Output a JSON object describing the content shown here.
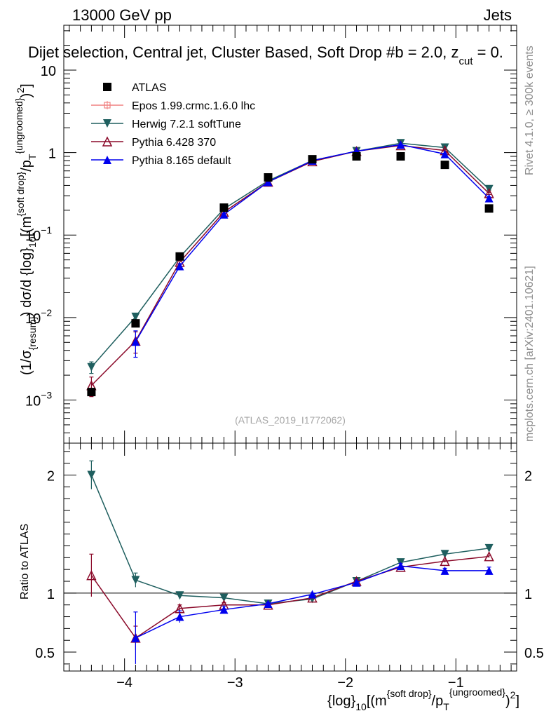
{
  "header": {
    "energy_label": "13000 GeV pp",
    "category_label": "Jets",
    "title": "Dijet selection, Central jet, Cluster Based, Soft Drop #b = 2.0, z_cut = 0.",
    "title_main": "Dijet selection, Central jet, Cluster Based, Soft Drop #",
    "title_beta": "b = 2.0, z",
    "title_cut": "cut",
    "title_end": " = 0."
  },
  "side_labels": {
    "rivet": "Rivet 4.1.0, ≥ 300k events",
    "mcplots": "mcplots.cern.ch [arXiv:2401.10621]"
  },
  "watermark": "(ATLAS_2019_I1772062)",
  "colors": {
    "atlas": "#000000",
    "epos": "#f08080",
    "herwig": "#1f5f5f",
    "pythia6": "#8b0a2a",
    "pythia8": "#0000ee"
  },
  "chart_data": [
    {
      "type": "scatter",
      "panel": "main",
      "yscale": "log",
      "ylabel": "(1/σ_{resum}) dσ/d {log}_10[(m^{soft drop}/p_T^{ungroomed})^2]",
      "ylabel_parts": {
        "a": "(1/σ",
        "a_sub": "{resum}",
        "b": ") dσ/d {log}",
        "b_sub": "10",
        "c": "[(m",
        "c_sup": "{soft drop}",
        "d": "/p",
        "d_sub": "T",
        "d_sup": "{ungroomed}",
        "e": ")",
        "e_sup": "2",
        "f": "]"
      },
      "xlim": [
        -4.55,
        -0.45
      ],
      "ylim": [
        0.0003,
        35
      ],
      "yticks": [
        {
          "value": 0.001,
          "base": "10",
          "exp": "−3"
        },
        {
          "value": 0.01,
          "base": "10",
          "exp": "−2"
        },
        {
          "value": 0.1,
          "base": "10",
          "exp": "−1"
        },
        {
          "value": 1,
          "base": "1",
          "exp": ""
        },
        {
          "value": 10,
          "base": "10",
          "exp": ""
        }
      ],
      "x": [
        -4.3,
        -3.9,
        -3.5,
        -3.1,
        -2.7,
        -2.3,
        -1.9,
        -1.5,
        -1.1,
        -0.7
      ],
      "legend_position": "top-left",
      "series": [
        {
          "name": "ATLAS",
          "key": "atlas",
          "marker": "square",
          "values": [
            0.00125,
            0.0085,
            0.055,
            0.215,
            0.5,
            0.83,
            0.9,
            0.9,
            0.71,
            0.21
          ],
          "errors": [
            0.0001,
            0.0006,
            0.003,
            0.008,
            0.015,
            0.02,
            0.02,
            0.02,
            0.02,
            0.01
          ]
        },
        {
          "name": "Epos 1.99.crmc.1.6.0 lhc",
          "key": "epos",
          "marker": "open-cross",
          "values": []
        },
        {
          "name": "Herwig 7.2.1 softTune",
          "key": "herwig",
          "marker": "triangle-down",
          "values": [
            0.0025,
            0.0102,
            0.054,
            0.208,
            0.455,
            0.8,
            1.04,
            1.3,
            1.15,
            0.36
          ],
          "errors": [
            0.0004,
            0.0009,
            0.002,
            0.005,
            0.008,
            0.012,
            0.015,
            0.02,
            0.02,
            0.01
          ]
        },
        {
          "name": "Pythia 6.428 370",
          "key": "pythia6",
          "marker": "triangle-up-open",
          "values": [
            0.0015,
            0.0052,
            0.047,
            0.19,
            0.44,
            0.78,
            1.04,
            1.22,
            1.06,
            0.32
          ],
          "errors": [
            0.0004,
            0.0015,
            0.003,
            0.005,
            0.008,
            0.012,
            0.015,
            0.02,
            0.02,
            0.01
          ]
        },
        {
          "name": "Pythia 8.165 default",
          "key": "pythia8",
          "marker": "triangle-up",
          "values": [
            0.0,
            0.0051,
            0.042,
            0.178,
            0.44,
            0.8,
            1.04,
            1.25,
            0.96,
            0.28
          ],
          "errors": [
            0.0,
            0.0018,
            0.003,
            0.005,
            0.008,
            0.012,
            0.015,
            0.02,
            0.02,
            0.01
          ]
        }
      ]
    },
    {
      "type": "scatter",
      "panel": "ratio",
      "yscale": "linear",
      "ylabel": "Ratio to ATLAS",
      "xlabel": "{log}_10[(m^{soft drop}/p_T^{ungroomed})^2]",
      "xlabel_parts": {
        "a": "{log}",
        "a_sub": "10",
        "b": "[(m",
        "b_sup": "{soft drop}",
        "c": "/p",
        "c_sub": "T",
        "c_sup": "{ungroomed}",
        "d": ")",
        "d_sup": "2",
        "e": "]"
      },
      "xlim": [
        -4.55,
        -0.45
      ],
      "ylim": [
        0.34,
        2.27
      ],
      "xticks": [
        {
          "value": -4,
          "label": "−4"
        },
        {
          "value": -3,
          "label": "−3"
        },
        {
          "value": -2,
          "label": "−2"
        },
        {
          "value": -1,
          "label": "−1"
        }
      ],
      "yticks": [
        {
          "value": 0.5,
          "label": "0.5"
        },
        {
          "value": 1,
          "label": "1"
        },
        {
          "value": 2,
          "label": "2"
        }
      ],
      "x": [
        -4.3,
        -3.9,
        -3.5,
        -3.1,
        -2.7,
        -2.3,
        -1.9,
        -1.5,
        -1.1,
        -0.7
      ],
      "reference": 1.0,
      "series": [
        {
          "name": "Herwig 7.2.1 softTune",
          "key": "herwig",
          "marker": "triangle-down",
          "values": [
            2.0,
            1.11,
            0.98,
            0.96,
            0.91,
            0.95,
            1.1,
            1.26,
            1.33,
            1.38
          ],
          "errors": [
            0.12,
            0.06,
            0.02,
            0.01,
            0.01,
            0.01,
            0.01,
            0.01,
            0.01,
            0.01
          ]
        },
        {
          "name": "Pythia 6.428 370",
          "key": "pythia6",
          "marker": "triangle-up-open",
          "values": [
            1.15,
            0.62,
            0.87,
            0.9,
            0.9,
            0.96,
            1.1,
            1.22,
            1.27,
            1.31
          ],
          "errors": [
            0.18,
            0.1,
            0.03,
            0.02,
            0.01,
            0.01,
            0.01,
            0.01,
            0.01,
            0.01
          ]
        },
        {
          "name": "Pythia 8.165 default",
          "key": "pythia8",
          "marker": "triangle-up",
          "values": [
            null,
            0.62,
            0.8,
            0.86,
            0.91,
            0.99,
            1.09,
            1.23,
            1.19,
            1.19
          ],
          "errors": [
            0,
            0.22,
            0.05,
            0.03,
            0.01,
            0.01,
            0.01,
            0.02,
            0.02,
            0.03
          ]
        }
      ]
    }
  ]
}
